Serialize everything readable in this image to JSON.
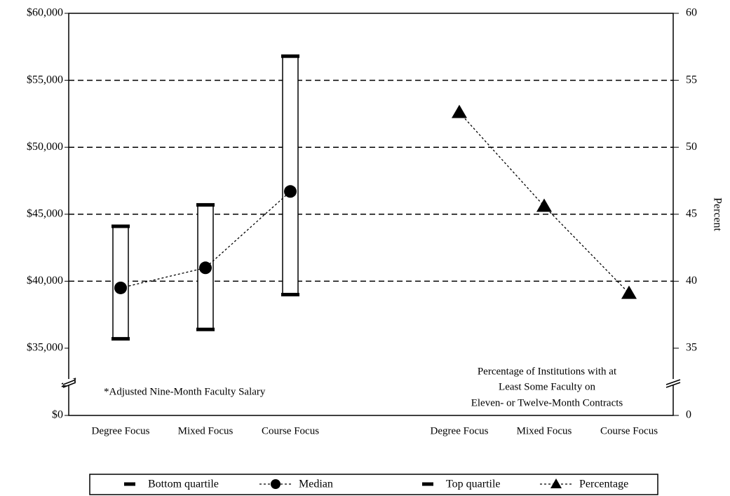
{
  "chart_data": {
    "type": "range-line",
    "categories": [
      "Degree Focus",
      "Mixed Focus",
      "Course Focus",
      "Degree Focus",
      "Mixed Focus",
      "Course Focus"
    ],
    "series": [
      {
        "name": "Bottom quartile",
        "color": "#000000",
        "marker": "dash",
        "values": [
          35700,
          36400,
          39000,
          null,
          null,
          null
        ]
      },
      {
        "name": "Median",
        "color": "#000000",
        "marker": "circle",
        "values": [
          39500,
          41000,
          46700,
          null,
          null,
          null
        ]
      },
      {
        "name": "Top quartile",
        "color": "#000000",
        "marker": "dash",
        "values": [
          44100,
          45700,
          56800,
          null,
          null,
          null
        ]
      },
      {
        "name": "Percentage",
        "color": "#000000",
        "marker": "triangle",
        "axis": "y2",
        "values": [
          null,
          null,
          null,
          52.6,
          45.6,
          39.1
        ]
      }
    ],
    "ylim": [
      0,
      60000
    ],
    "axis_break": [
      0,
      35000
    ],
    "yticks": [
      {
        "value": 0,
        "label": "$0"
      },
      {
        "value": 35000,
        "label": "$35,000"
      },
      {
        "value": 40000,
        "label": "$40,000"
      },
      {
        "value": 45000,
        "label": "$45,000"
      },
      {
        "value": 50000,
        "label": "$50,000"
      },
      {
        "value": 55000,
        "label": "$55,000"
      },
      {
        "value": 60000,
        "label": "$60,000"
      }
    ],
    "y2lim": [
      0,
      60
    ],
    "y2_axis_break": [
      0,
      35
    ],
    "y2ticks": [
      0,
      35,
      40,
      45,
      50,
      55,
      60
    ],
    "y2label": "Percent",
    "grid": true,
    "legend": "bottom",
    "annotations": [
      "*Adjusted Nine-Month Faculty Salary",
      "Percentage of Institutions with at",
      "Least Some Faculty on",
      "Eleven- or Twelve-Month Contracts"
    ]
  }
}
